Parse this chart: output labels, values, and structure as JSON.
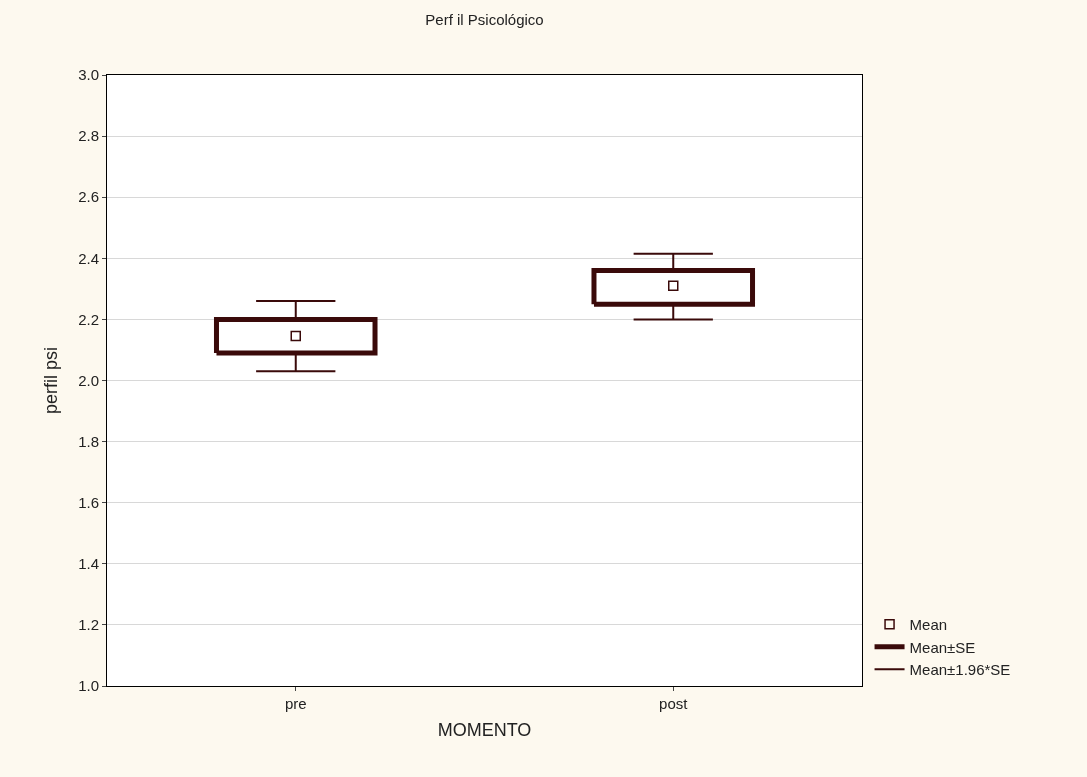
{
  "chart_data": {
    "type": "box",
    "title": "Perf il Psicológico",
    "xlabel": "MOMENTO",
    "ylabel": "perfil psi",
    "categories": [
      "pre",
      "post"
    ],
    "boxes": [
      {
        "low": 2.03,
        "q1": 2.09,
        "mean": 2.146,
        "q3": 2.2,
        "high": 2.26
      },
      {
        "low": 2.2,
        "q1": 2.25,
        "mean": 2.31,
        "q3": 2.36,
        "high": 2.415
      }
    ],
    "color": "#3a0a0a",
    "ylim": [
      1.0,
      3.0
    ],
    "yticks": [
      {
        "value": 1.0,
        "label": "1.0"
      },
      {
        "value": 1.2,
        "label": "1.2"
      },
      {
        "value": 1.4,
        "label": "1.4"
      },
      {
        "value": 1.6,
        "label": "1.6"
      },
      {
        "value": 1.8,
        "label": "1.8"
      },
      {
        "value": 2.0,
        "label": "2.0"
      },
      {
        "value": 2.2,
        "label": "2.2"
      },
      {
        "value": 2.4,
        "label": "2.4"
      },
      {
        "value": 2.6,
        "label": "2.6"
      },
      {
        "value": 2.8,
        "label": "2.8"
      },
      {
        "value": 3.0,
        "label": "3.0"
      }
    ],
    "grid": "y",
    "marker": "square",
    "annotations": [
      "Mean",
      "Mean±SE",
      "Mean±1.96*SE"
    ]
  }
}
